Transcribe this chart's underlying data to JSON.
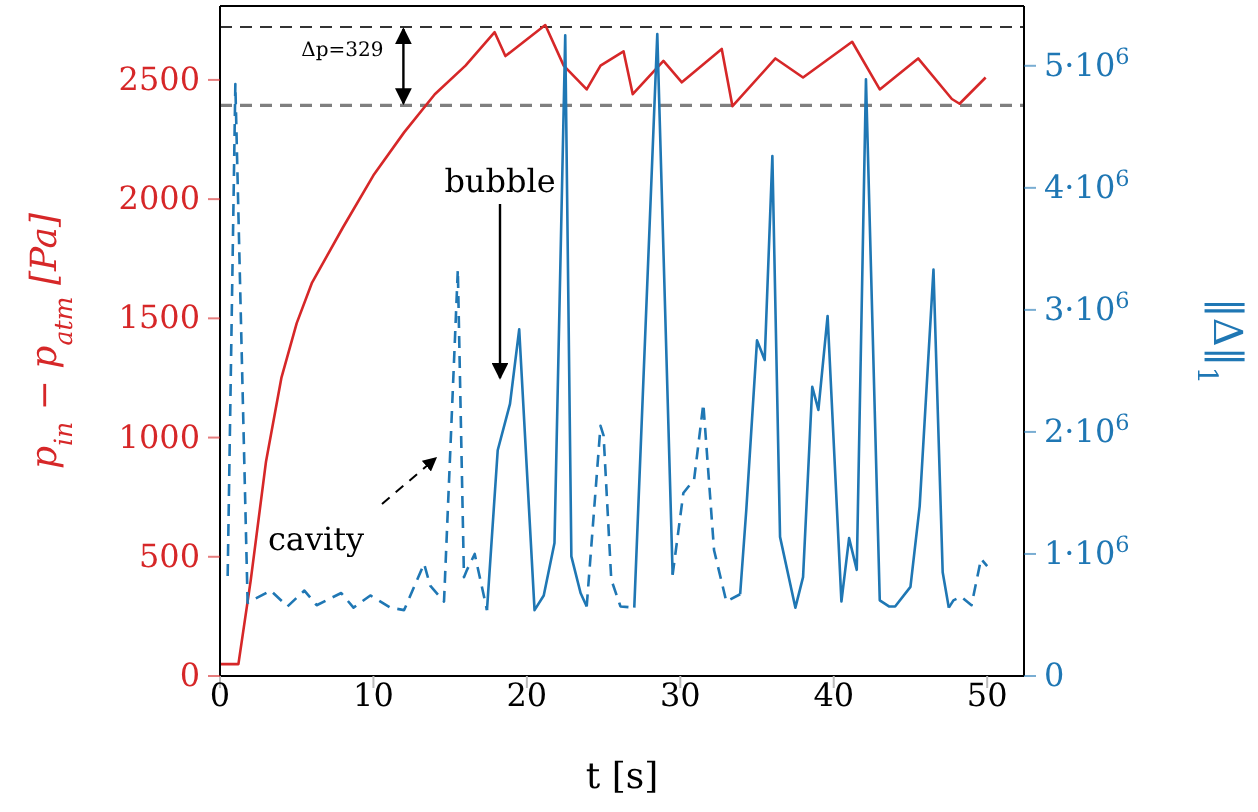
{
  "chart_data": {
    "type": "line",
    "xlabel": "t [s]",
    "ylabel": "p$_{in}$ − p$_{atm}$ [Pa]",
    "y2label": "‖Δ‖$_{1}$",
    "xlim": [
      0,
      52.4
    ],
    "xticks": [
      0,
      10,
      20,
      30,
      40,
      50
    ],
    "ylim": [
      0,
      2810
    ],
    "yticks": [
      0,
      500,
      1000,
      1500,
      2000,
      2500
    ],
    "y2lim": [
      0,
      5490000
    ],
    "y2ticks": [
      0,
      {
        "value": 1000000,
        "label": "1·10$^{6}$"
      },
      {
        "value": 2000000,
        "label": "2·10$^{6}$"
      },
      {
        "value": 3000000,
        "label": "3·10$^{6}$"
      },
      {
        "value": 4000000,
        "label": "4·10$^{6}$"
      },
      {
        "value": 5000000,
        "label": "5·10$^{6}$"
      }
    ],
    "marker": "none",
    "series": [
      {
        "color": "#d62728",
        "line_style": "solid",
        "x": [
          0,
          1,
          1.2,
          2,
          3,
          4,
          5,
          6,
          8,
          10,
          12,
          14,
          16,
          17.9,
          18.6,
          21.2,
          22.4,
          23.9,
          24.8,
          26.3,
          26.9,
          28.9,
          30.1,
          32.7,
          33.4,
          36.2,
          38.0,
          41.2,
          43.0,
          45.5,
          47.7,
          48.2,
          49.9
        ],
        "values": [
          50,
          50,
          50,
          400,
          900,
          1250,
          1480,
          1650,
          1880,
          2100,
          2280,
          2440,
          2560,
          2700,
          2600,
          2730,
          2560,
          2460,
          2560,
          2620,
          2440,
          2580,
          2490,
          2630,
          2390,
          2590,
          2510,
          2660,
          2460,
          2590,
          2420,
          2400,
          2510
        ]
      },
      {
        "color": "#1f77b4",
        "axis": "y2",
        "line_style": "dashed",
        "x": [
          0.5,
          1,
          1.8,
          3.3,
          4.4,
          5.5,
          6.3,
          7.9,
          8.7,
          9.8,
          11.1,
          12.0,
          13.3,
          13.7,
          14.6,
          15.5,
          15.9,
          16.1,
          16.6,
          17.4
        ],
        "values": [
          820000,
          4850000,
          600000,
          700000,
          570000,
          700000,
          580000,
          680000,
          560000,
          660000,
          560000,
          540000,
          920000,
          740000,
          610000,
          3330000,
          810000,
          870000,
          1000000,
          540000
        ]
      },
      {
        "color": "#1f77b4",
        "axis": "y2",
        "line_style": "solid",
        "x": [
          17.4,
          18.1,
          18.9,
          19.5,
          20.5,
          21.1,
          21.8,
          22.5,
          22.9,
          23.5,
          23.9
        ],
        "values": [
          540000,
          1850000,
          2230000,
          2840000,
          540000,
          660000,
          1090000,
          5250000,
          980000,
          680000,
          570000
        ]
      },
      {
        "color": "#1f77b4",
        "axis": "y2",
        "line_style": "dashed",
        "x": [
          23.9,
          24.8,
          25.0,
          25.5,
          26.1,
          27.0
        ],
        "values": [
          570000,
          2050000,
          1970000,
          790000,
          570000,
          560000
        ]
      },
      {
        "color": "#1f77b4",
        "axis": "y2",
        "line_style": "solid",
        "x": [
          27.0,
          28.5,
          29.5
        ],
        "values": [
          560000,
          5260000,
          830000
        ]
      },
      {
        "color": "#1f77b4",
        "axis": "y2",
        "line_style": "dashed",
        "x": [
          29.5,
          30.2,
          30.9,
          31.5,
          32.2,
          33.0,
          33.9
        ],
        "values": [
          830000,
          1500000,
          1610000,
          2230000,
          1030000,
          610000,
          670000
        ]
      },
      {
        "color": "#1f77b4",
        "axis": "y2",
        "line_style": "solid",
        "x": [
          33.9,
          34.3,
          35.0,
          35.5,
          36.0,
          36.5,
          37.5,
          38.0,
          38.6,
          39.0,
          39.6,
          40.5,
          41.0,
          41.5,
          42.1,
          43.0,
          43.6,
          44.0,
          45.0,
          45.6,
          46.5,
          47.1,
          47.5
        ],
        "values": [
          670000,
          1360000,
          2750000,
          2590000,
          4260000,
          1140000,
          560000,
          810000,
          2370000,
          2180000,
          2950000,
          610000,
          1130000,
          870000,
          4890000,
          620000,
          570000,
          570000,
          730000,
          1390000,
          3330000,
          850000,
          560000
        ]
      },
      {
        "color": "#1f77b4",
        "axis": "y2",
        "line_style": "dashed",
        "x": [
          47.5,
          47.8,
          48.3,
          48.98,
          49.6,
          50.0
        ],
        "values": [
          560000,
          620000,
          650000,
          580000,
          960000,
          900000
        ]
      }
    ],
    "ref_lines": [
      {
        "axis": "y",
        "value": 2722,
        "color": "#333333",
        "line_style": "dashed"
      },
      {
        "axis": "y",
        "value": 2393,
        "color": "#7f7f7f",
        "line_style": "dashed"
      }
    ],
    "annotations": [
      "Δp=329",
      "bubble",
      "cavity"
    ]
  }
}
